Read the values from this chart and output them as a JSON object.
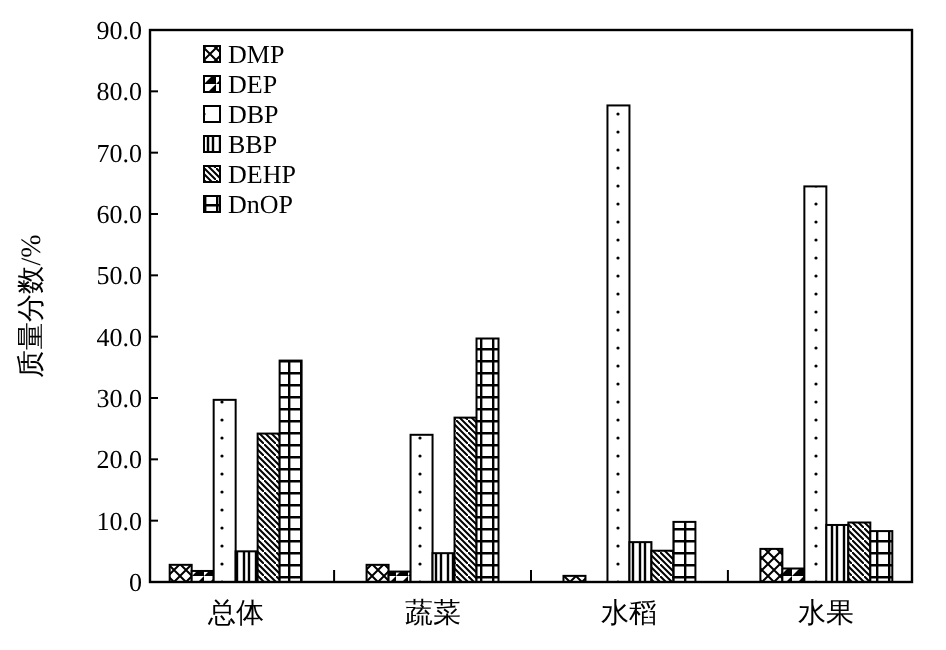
{
  "chart_data": {
    "type": "bar",
    "ylabel": "质量分数/%",
    "categories": [
      "总体",
      "蔬菜",
      "水稻",
      "水果"
    ],
    "series": [
      {
        "name": "DMP",
        "color": "#000000",
        "values": [
          2.8,
          2.8,
          1.0,
          5.4
        ]
      },
      {
        "name": "DEP",
        "color": "#000000",
        "values": [
          1.8,
          1.7,
          0,
          2.2
        ]
      },
      {
        "name": "DBP",
        "color": "#000000",
        "values": [
          29.7,
          24.0,
          77.7,
          64.5
        ]
      },
      {
        "name": "BBP",
        "color": "#000000",
        "values": [
          5.0,
          4.7,
          6.5,
          9.3
        ]
      },
      {
        "name": "DEHP",
        "color": "#000000",
        "values": [
          24.2,
          26.8,
          5.1,
          9.7
        ]
      },
      {
        "name": "DnOP",
        "color": "#000000",
        "values": [
          36.1,
          39.7,
          9.8,
          8.3
        ]
      }
    ],
    "ylim": [
      0,
      90
    ],
    "yticks": [
      {
        "value": 0,
        "label": "0"
      },
      {
        "value": 10,
        "label": "10.0"
      },
      {
        "value": 20,
        "label": "20.0"
      },
      {
        "value": 30,
        "label": "30.0"
      },
      {
        "value": 40,
        "label": "40.0"
      },
      {
        "value": 50,
        "label": "50.0"
      },
      {
        "value": 60,
        "label": "60.0"
      },
      {
        "value": 70,
        "label": "70.0"
      },
      {
        "value": 80,
        "label": "80.0"
      },
      {
        "value": 90,
        "label": "90.0"
      }
    ],
    "legend": "top left",
    "grid": false
  }
}
